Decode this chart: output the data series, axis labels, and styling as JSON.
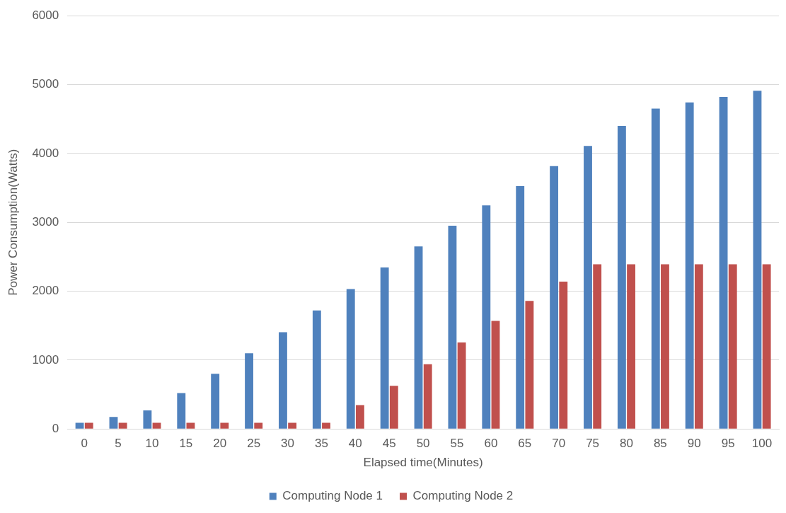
{
  "chart_data": {
    "type": "bar",
    "xlabel": "Elapsed time(Minutes)",
    "ylabel": "Power Consumption(Watts)",
    "categories": [
      "0",
      "5",
      "10",
      "15",
      "20",
      "25",
      "30",
      "35",
      "40",
      "45",
      "50",
      "55",
      "60",
      "65",
      "70",
      "75",
      "80",
      "85",
      "90",
      "95",
      "100"
    ],
    "series": [
      {
        "name": "Computing Node 1",
        "color": "#4f81bd",
        "values": [
          90,
          175,
          270,
          520,
          800,
          1100,
          1405,
          1720,
          2030,
          2345,
          2650,
          2950,
          3245,
          3525,
          3815,
          4110,
          4400,
          4650,
          4740,
          4820,
          4910
        ]
      },
      {
        "name": "Computing Node 2",
        "color": "#c0504d",
        "values": [
          90,
          90,
          90,
          90,
          90,
          90,
          90,
          90,
          345,
          625,
          940,
          1255,
          1570,
          1860,
          2140,
          2390,
          2390,
          2390,
          2390,
          2390,
          2390
        ]
      }
    ],
    "ylim": [
      0,
      6000
    ],
    "yticks": [
      0,
      1000,
      2000,
      3000,
      4000,
      5000,
      6000
    ],
    "grid": "y",
    "legend": "bottom"
  }
}
